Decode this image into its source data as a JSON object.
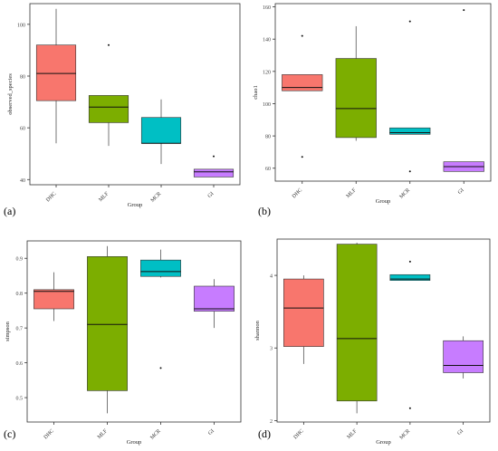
{
  "chart_data": [
    {
      "type": "box",
      "panel_label": "(a)",
      "xlabel": "Group",
      "ylabel": "observed_species",
      "ylim": [
        38,
        108
      ],
      "yticks": [
        40,
        60,
        80,
        100
      ],
      "categories": [
        "DHC",
        "MLF",
        "MCR",
        "GI"
      ],
      "colors": [
        "#f8766d",
        "#7cae00",
        "#00bfc4",
        "#c77cff"
      ],
      "boxes": [
        {
          "min": 54,
          "q1": 70.5,
          "median": 81,
          "q3": 92,
          "max": 106,
          "outliers": []
        },
        {
          "min": 53,
          "q1": 62,
          "median": 68,
          "q3": 72.5,
          "max": 72.5,
          "outliers": [
            92
          ]
        },
        {
          "min": 46,
          "q1": 54,
          "median": 54,
          "q3": 64,
          "max": 71,
          "outliers": []
        },
        {
          "min": 41,
          "q1": 41,
          "median": 43,
          "q3": 44,
          "max": 44,
          "outliers": [
            49
          ]
        }
      ]
    },
    {
      "type": "box",
      "panel_label": "(b)",
      "xlabel": "Group",
      "ylabel": "chao1",
      "ylim": [
        52,
        162
      ],
      "yticks": [
        60,
        80,
        100,
        120,
        140,
        160
      ],
      "categories": [
        "DHC",
        "MLF",
        "MCR",
        "GI"
      ],
      "colors": [
        "#f8766d",
        "#7cae00",
        "#00bfc4",
        "#c77cff"
      ],
      "boxes": [
        {
          "min": 108,
          "q1": 108,
          "median": 110,
          "q3": 118,
          "max": 118,
          "outliers": [
            142,
            67
          ]
        },
        {
          "min": 77,
          "q1": 79,
          "median": 97,
          "q3": 128,
          "max": 148,
          "outliers": []
        },
        {
          "min": 81,
          "q1": 81,
          "median": 82,
          "q3": 85,
          "max": 85,
          "outliers": [
            151,
            58
          ]
        },
        {
          "min": 58,
          "q1": 58,
          "median": 61,
          "q3": 64,
          "max": 64,
          "outliers": [
            158
          ]
        }
      ]
    },
    {
      "type": "box",
      "panel_label": "(c)",
      "xlabel": "Group",
      "ylabel": "simpson",
      "ylim": [
        0.43,
        0.95
      ],
      "yticks": [
        0.5,
        0.6,
        0.7,
        0.8,
        0.9
      ],
      "categories": [
        "DHC",
        "MLF",
        "MCR",
        "GI"
      ],
      "colors": [
        "#f8766d",
        "#7cae00",
        "#00bfc4",
        "#c77cff"
      ],
      "boxes": [
        {
          "min": 0.72,
          "q1": 0.755,
          "median": 0.805,
          "q3": 0.81,
          "max": 0.86,
          "outliers": []
        },
        {
          "min": 0.455,
          "q1": 0.52,
          "median": 0.71,
          "q3": 0.905,
          "max": 0.935,
          "outliers": []
        },
        {
          "min": 0.845,
          "q1": 0.848,
          "median": 0.862,
          "q3": 0.895,
          "max": 0.925,
          "outliers": [
            0.585
          ]
        },
        {
          "min": 0.7,
          "q1": 0.748,
          "median": 0.755,
          "q3": 0.82,
          "max": 0.84,
          "outliers": []
        }
      ]
    },
    {
      "type": "box",
      "panel_label": "(d)",
      "xlabel": "Group",
      "ylabel": "shannon",
      "ylim": [
        1.98,
        4.5
      ],
      "yticks": [
        2,
        3,
        4
      ],
      "categories": [
        "DHC",
        "MLF",
        "MCR",
        "GI"
      ],
      "colors": [
        "#f8766d",
        "#7cae00",
        "#00bfc4",
        "#c77cff"
      ],
      "boxes": [
        {
          "min": 2.78,
          "q1": 3.02,
          "median": 3.55,
          "q3": 3.95,
          "max": 4.0,
          "outliers": []
        },
        {
          "min": 2.1,
          "q1": 2.27,
          "median": 3.13,
          "q3": 4.43,
          "max": 4.45,
          "outliers": []
        },
        {
          "min": 3.93,
          "q1": 3.93,
          "median": 3.95,
          "q3": 4.01,
          "max": 4.01,
          "outliers": [
            4.19,
            2.17
          ]
        },
        {
          "min": 2.58,
          "q1": 2.66,
          "median": 2.76,
          "q3": 3.1,
          "max": 3.16,
          "outliers": []
        }
      ]
    }
  ]
}
